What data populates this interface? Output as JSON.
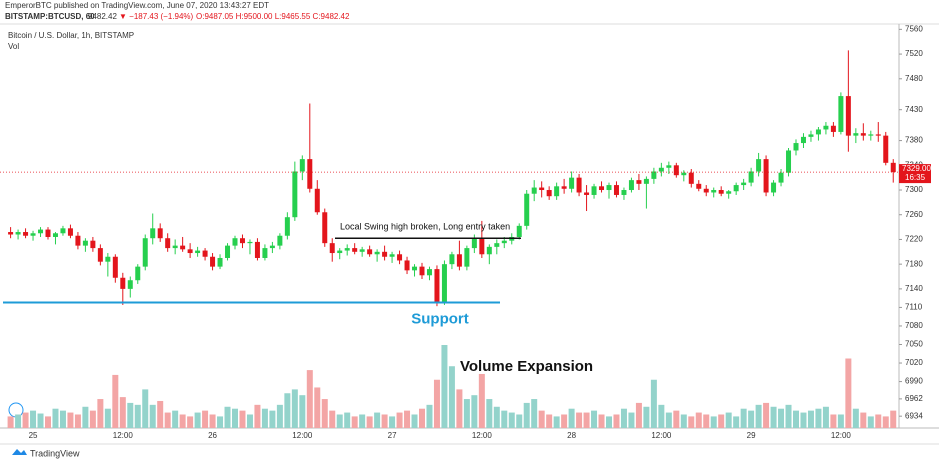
{
  "chart_data": {
    "type": "candlestick",
    "header_line": "EmperorBTC published on TradingView.com, June 07, 2020 13:43:27 EDT",
    "symbol_line": "BITSTAMP:BTCUSD, 60",
    "last": "9482.42",
    "change": "▼ −187.43 (−1.94%)",
    "ohlc_line": "O:9487.05 H:9500.00 L:9465.55 C:9482.42",
    "title": "Bitcoin / U.S. Dollar, 1h, BITSTAMP",
    "volume_label": "Vol",
    "footer": "TradingView",
    "up_color": "#26cf4e",
    "down_color": "#e3151c",
    "volume_up_color": "#93d3cb",
    "volume_down_color": "#f3a5a5",
    "ylim": [
      6910,
      7580
    ],
    "yticks": [
      7560,
      7520,
      7480,
      7430,
      7380,
      7340,
      7300,
      7260,
      7220,
      7180,
      7140,
      7110,
      7080,
      7050,
      7020,
      6990,
      6962,
      6934
    ],
    "categories": [
      null,
      null,
      null,
      "25",
      null,
      null,
      null,
      null,
      null,
      null,
      null,
      null,
      null,
      null,
      null,
      "12:00",
      null,
      null,
      null,
      null,
      null,
      null,
      null,
      null,
      null,
      null,
      null,
      "26",
      null,
      null,
      null,
      null,
      null,
      null,
      null,
      null,
      null,
      null,
      null,
      "12:00",
      null,
      null,
      null,
      null,
      null,
      null,
      null,
      null,
      null,
      null,
      null,
      "27",
      null,
      null,
      null,
      null,
      null,
      null,
      null,
      null,
      null,
      null,
      null,
      "12:00",
      null,
      null,
      null,
      null,
      null,
      null,
      null,
      null,
      null,
      null,
      null,
      "28",
      null,
      null,
      null,
      null,
      null,
      null,
      null,
      null,
      null,
      null,
      null,
      "12:00",
      null,
      null,
      null,
      null,
      null,
      null,
      null,
      null,
      null,
      null,
      null,
      "29",
      null,
      null,
      null,
      null,
      null,
      null,
      null,
      null,
      null,
      null,
      null,
      "12:00",
      null,
      null,
      null,
      null,
      null,
      null,
      null
    ],
    "ohlc": [
      [
        7232,
        7240,
        7222,
        7228
      ],
      [
        7228,
        7236,
        7220,
        7232
      ],
      [
        7232,
        7238,
        7222,
        7226
      ],
      [
        7226,
        7234,
        7218,
        7230
      ],
      [
        7230,
        7240,
        7224,
        7236
      ],
      [
        7236,
        7240,
        7220,
        7224
      ],
      [
        7224,
        7232,
        7212,
        7230
      ],
      [
        7230,
        7242,
        7226,
        7238
      ],
      [
        7238,
        7244,
        7222,
        7226
      ],
      [
        7226,
        7232,
        7204,
        7210
      ],
      [
        7210,
        7222,
        7200,
        7218
      ],
      [
        7218,
        7224,
        7200,
        7206
      ],
      [
        7206,
        7212,
        7178,
        7184
      ],
      [
        7184,
        7198,
        7160,
        7192
      ],
      [
        7192,
        7196,
        7150,
        7158
      ],
      [
        7158,
        7166,
        7114,
        7140
      ],
      [
        7140,
        7160,
        7126,
        7154
      ],
      [
        7154,
        7180,
        7148,
        7176
      ],
      [
        7176,
        7228,
        7170,
        7222
      ],
      [
        7222,
        7262,
        7212,
        7238
      ],
      [
        7238,
        7246,
        7216,
        7222
      ],
      [
        7222,
        7230,
        7200,
        7206
      ],
      [
        7206,
        7220,
        7196,
        7210
      ],
      [
        7210,
        7224,
        7200,
        7204
      ],
      [
        7204,
        7214,
        7190,
        7198
      ],
      [
        7198,
        7208,
        7192,
        7202
      ],
      [
        7202,
        7206,
        7186,
        7192
      ],
      [
        7192,
        7198,
        7170,
        7176
      ],
      [
        7176,
        7196,
        7172,
        7190
      ],
      [
        7190,
        7214,
        7186,
        7210
      ],
      [
        7210,
        7226,
        7204,
        7222
      ],
      [
        7222,
        7228,
        7206,
        7214
      ],
      [
        7214,
        7220,
        7196,
        7216
      ],
      [
        7216,
        7222,
        7186,
        7190
      ],
      [
        7190,
        7212,
        7186,
        7206
      ],
      [
        7206,
        7216,
        7198,
        7210
      ],
      [
        7210,
        7230,
        7204,
        7226
      ],
      [
        7226,
        7264,
        7220,
        7256
      ],
      [
        7256,
        7346,
        7250,
        7330
      ],
      [
        7330,
        7356,
        7316,
        7350
      ],
      [
        7350,
        7440,
        7296,
        7302
      ],
      [
        7302,
        7316,
        7260,
        7264
      ],
      [
        7264,
        7270,
        7208,
        7214
      ],
      [
        7214,
        7222,
        7184,
        7198
      ],
      [
        7198,
        7206,
        7188,
        7202
      ],
      [
        7202,
        7212,
        7194,
        7206
      ],
      [
        7206,
        7214,
        7196,
        7200
      ],
      [
        7200,
        7208,
        7192,
        7204
      ],
      [
        7204,
        7210,
        7192,
        7196
      ],
      [
        7196,
        7204,
        7184,
        7200
      ],
      [
        7200,
        7210,
        7186,
        7192
      ],
      [
        7192,
        7200,
        7182,
        7196
      ],
      [
        7196,
        7202,
        7180,
        7186
      ],
      [
        7186,
        7192,
        7164,
        7170
      ],
      [
        7170,
        7180,
        7160,
        7176
      ],
      [
        7176,
        7182,
        7156,
        7162
      ],
      [
        7162,
        7176,
        7154,
        7172
      ],
      [
        7172,
        7178,
        7112,
        7118
      ],
      [
        7118,
        7186,
        7114,
        7180
      ],
      [
        7180,
        7200,
        7172,
        7196
      ],
      [
        7196,
        7218,
        7170,
        7176
      ],
      [
        7176,
        7210,
        7170,
        7206
      ],
      [
        7206,
        7228,
        7198,
        7222
      ],
      [
        7222,
        7250,
        7190,
        7196
      ],
      [
        7196,
        7212,
        7180,
        7208
      ],
      [
        7208,
        7220,
        7196,
        7214
      ],
      [
        7214,
        7224,
        7206,
        7218
      ],
      [
        7218,
        7230,
        7212,
        7224
      ],
      [
        7224,
        7246,
        7220,
        7242
      ],
      [
        7242,
        7300,
        7236,
        7294
      ],
      [
        7294,
        7316,
        7282,
        7304
      ],
      [
        7304,
        7314,
        7288,
        7300
      ],
      [
        7300,
        7306,
        7284,
        7290
      ],
      [
        7290,
        7312,
        7284,
        7306
      ],
      [
        7306,
        7318,
        7294,
        7302
      ],
      [
        7302,
        7330,
        7296,
        7320
      ],
      [
        7320,
        7326,
        7290,
        7296
      ],
      [
        7296,
        7308,
        7266,
        7292
      ],
      [
        7292,
        7310,
        7286,
        7306
      ],
      [
        7306,
        7314,
        7296,
        7300
      ],
      [
        7300,
        7312,
        7286,
        7308
      ],
      [
        7308,
        7314,
        7288,
        7292
      ],
      [
        7292,
        7304,
        7284,
        7300
      ],
      [
        7300,
        7320,
        7296,
        7316
      ],
      [
        7316,
        7326,
        7300,
        7310
      ],
      [
        7310,
        7322,
        7270,
        7318
      ],
      [
        7318,
        7336,
        7310,
        7330
      ],
      [
        7330,
        7344,
        7322,
        7336
      ],
      [
        7336,
        7346,
        7326,
        7340
      ],
      [
        7340,
        7344,
        7320,
        7324
      ],
      [
        7324,
        7332,
        7314,
        7328
      ],
      [
        7328,
        7334,
        7304,
        7310
      ],
      [
        7310,
        7316,
        7298,
        7302
      ],
      [
        7302,
        7308,
        7290,
        7296
      ],
      [
        7296,
        7304,
        7288,
        7300
      ],
      [
        7300,
        7306,
        7290,
        7294
      ],
      [
        7294,
        7300,
        7286,
        7298
      ],
      [
        7298,
        7312,
        7292,
        7308
      ],
      [
        7308,
        7318,
        7300,
        7312
      ],
      [
        7312,
        7336,
        7306,
        7330
      ],
      [
        7330,
        7360,
        7322,
        7350
      ],
      [
        7350,
        7356,
        7290,
        7296
      ],
      [
        7296,
        7316,
        7290,
        7312
      ],
      [
        7312,
        7334,
        7306,
        7328
      ],
      [
        7328,
        7368,
        7322,
        7364
      ],
      [
        7364,
        7382,
        7356,
        7376
      ],
      [
        7376,
        7392,
        7368,
        7386
      ],
      [
        7386,
        7396,
        7378,
        7390
      ],
      [
        7390,
        7402,
        7380,
        7398
      ],
      [
        7398,
        7410,
        7390,
        7404
      ],
      [
        7404,
        7410,
        7386,
        7394
      ],
      [
        7394,
        7458,
        7390,
        7452
      ],
      [
        7452,
        7526,
        7362,
        7388
      ],
      [
        7388,
        7400,
        7376,
        7392
      ],
      [
        7392,
        7408,
        7380,
        7388
      ],
      [
        7388,
        7396,
        7380,
        7390
      ],
      [
        7390,
        7410,
        7378,
        7388
      ],
      [
        7388,
        7394,
        7340,
        7344
      ],
      [
        7344,
        7350,
        7312,
        7329
      ]
    ],
    "volume": [
      12,
      14,
      16,
      18,
      15,
      12,
      20,
      18,
      16,
      14,
      22,
      18,
      30,
      20,
      55,
      32,
      26,
      24,
      40,
      24,
      28,
      16,
      18,
      14,
      12,
      16,
      18,
      14,
      12,
      22,
      20,
      18,
      14,
      24,
      20,
      18,
      24,
      36,
      40,
      34,
      60,
      42,
      30,
      18,
      14,
      16,
      12,
      14,
      12,
      16,
      14,
      12,
      16,
      18,
      14,
      20,
      24,
      50,
      86,
      64,
      40,
      30,
      34,
      56,
      30,
      22,
      18,
      16,
      14,
      26,
      30,
      18,
      14,
      12,
      14,
      20,
      16,
      16,
      18,
      14,
      12,
      14,
      20,
      16,
      26,
      22,
      50,
      24,
      16,
      18,
      14,
      12,
      16,
      14,
      12,
      14,
      16,
      12,
      20,
      18,
      24,
      26,
      22,
      20,
      24,
      18,
      16,
      18,
      20,
      22,
      14,
      14,
      72,
      20,
      16,
      12,
      14,
      12,
      18
    ],
    "last_price": 7329,
    "last_price_label": "7329.00",
    "countdown": "16:35",
    "levels": [
      {
        "text": "Local Swing high broken, Long entry taken",
        "value": 7222,
        "color": "#111111"
      },
      {
        "text": "Support",
        "value": 7118,
        "color": "#1e9bd7"
      }
    ],
    "annotation": "Volume Expansion"
  }
}
